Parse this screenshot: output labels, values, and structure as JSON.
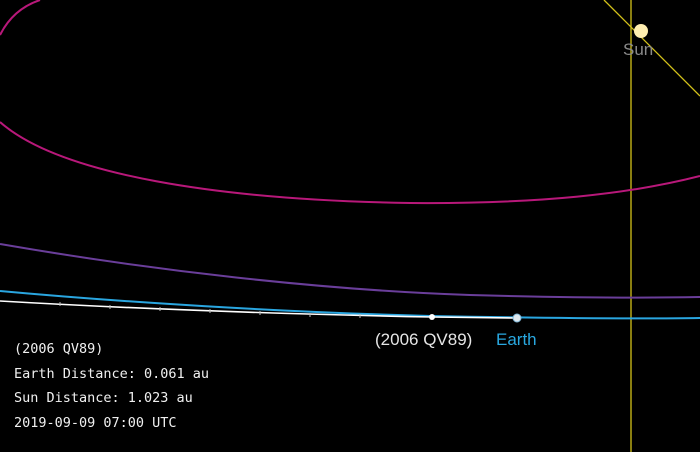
{
  "scene": {
    "sun_label": "Sun",
    "asteroid_label": "(2006 QV89)",
    "earth_label": "Earth"
  },
  "info": {
    "object_name": "(2006 QV89)",
    "earth_distance": "Earth Distance: 0.061 au",
    "sun_distance": "Sun Distance: 1.023 au",
    "timestamp": "2019-09-09 07:00 UTC"
  },
  "colors": {
    "background": "#000000",
    "sun": "#ffeeb0",
    "sun_axis": "#d4c21a",
    "magenta_orbit": "#b8187a",
    "purple_orbit": "#6a3e9a",
    "earth_orbit": "#2aa6e0",
    "asteroid_orbit": "#ffffff",
    "earth_label": "#29a8e0",
    "sun_label": "#8a8a8a"
  }
}
